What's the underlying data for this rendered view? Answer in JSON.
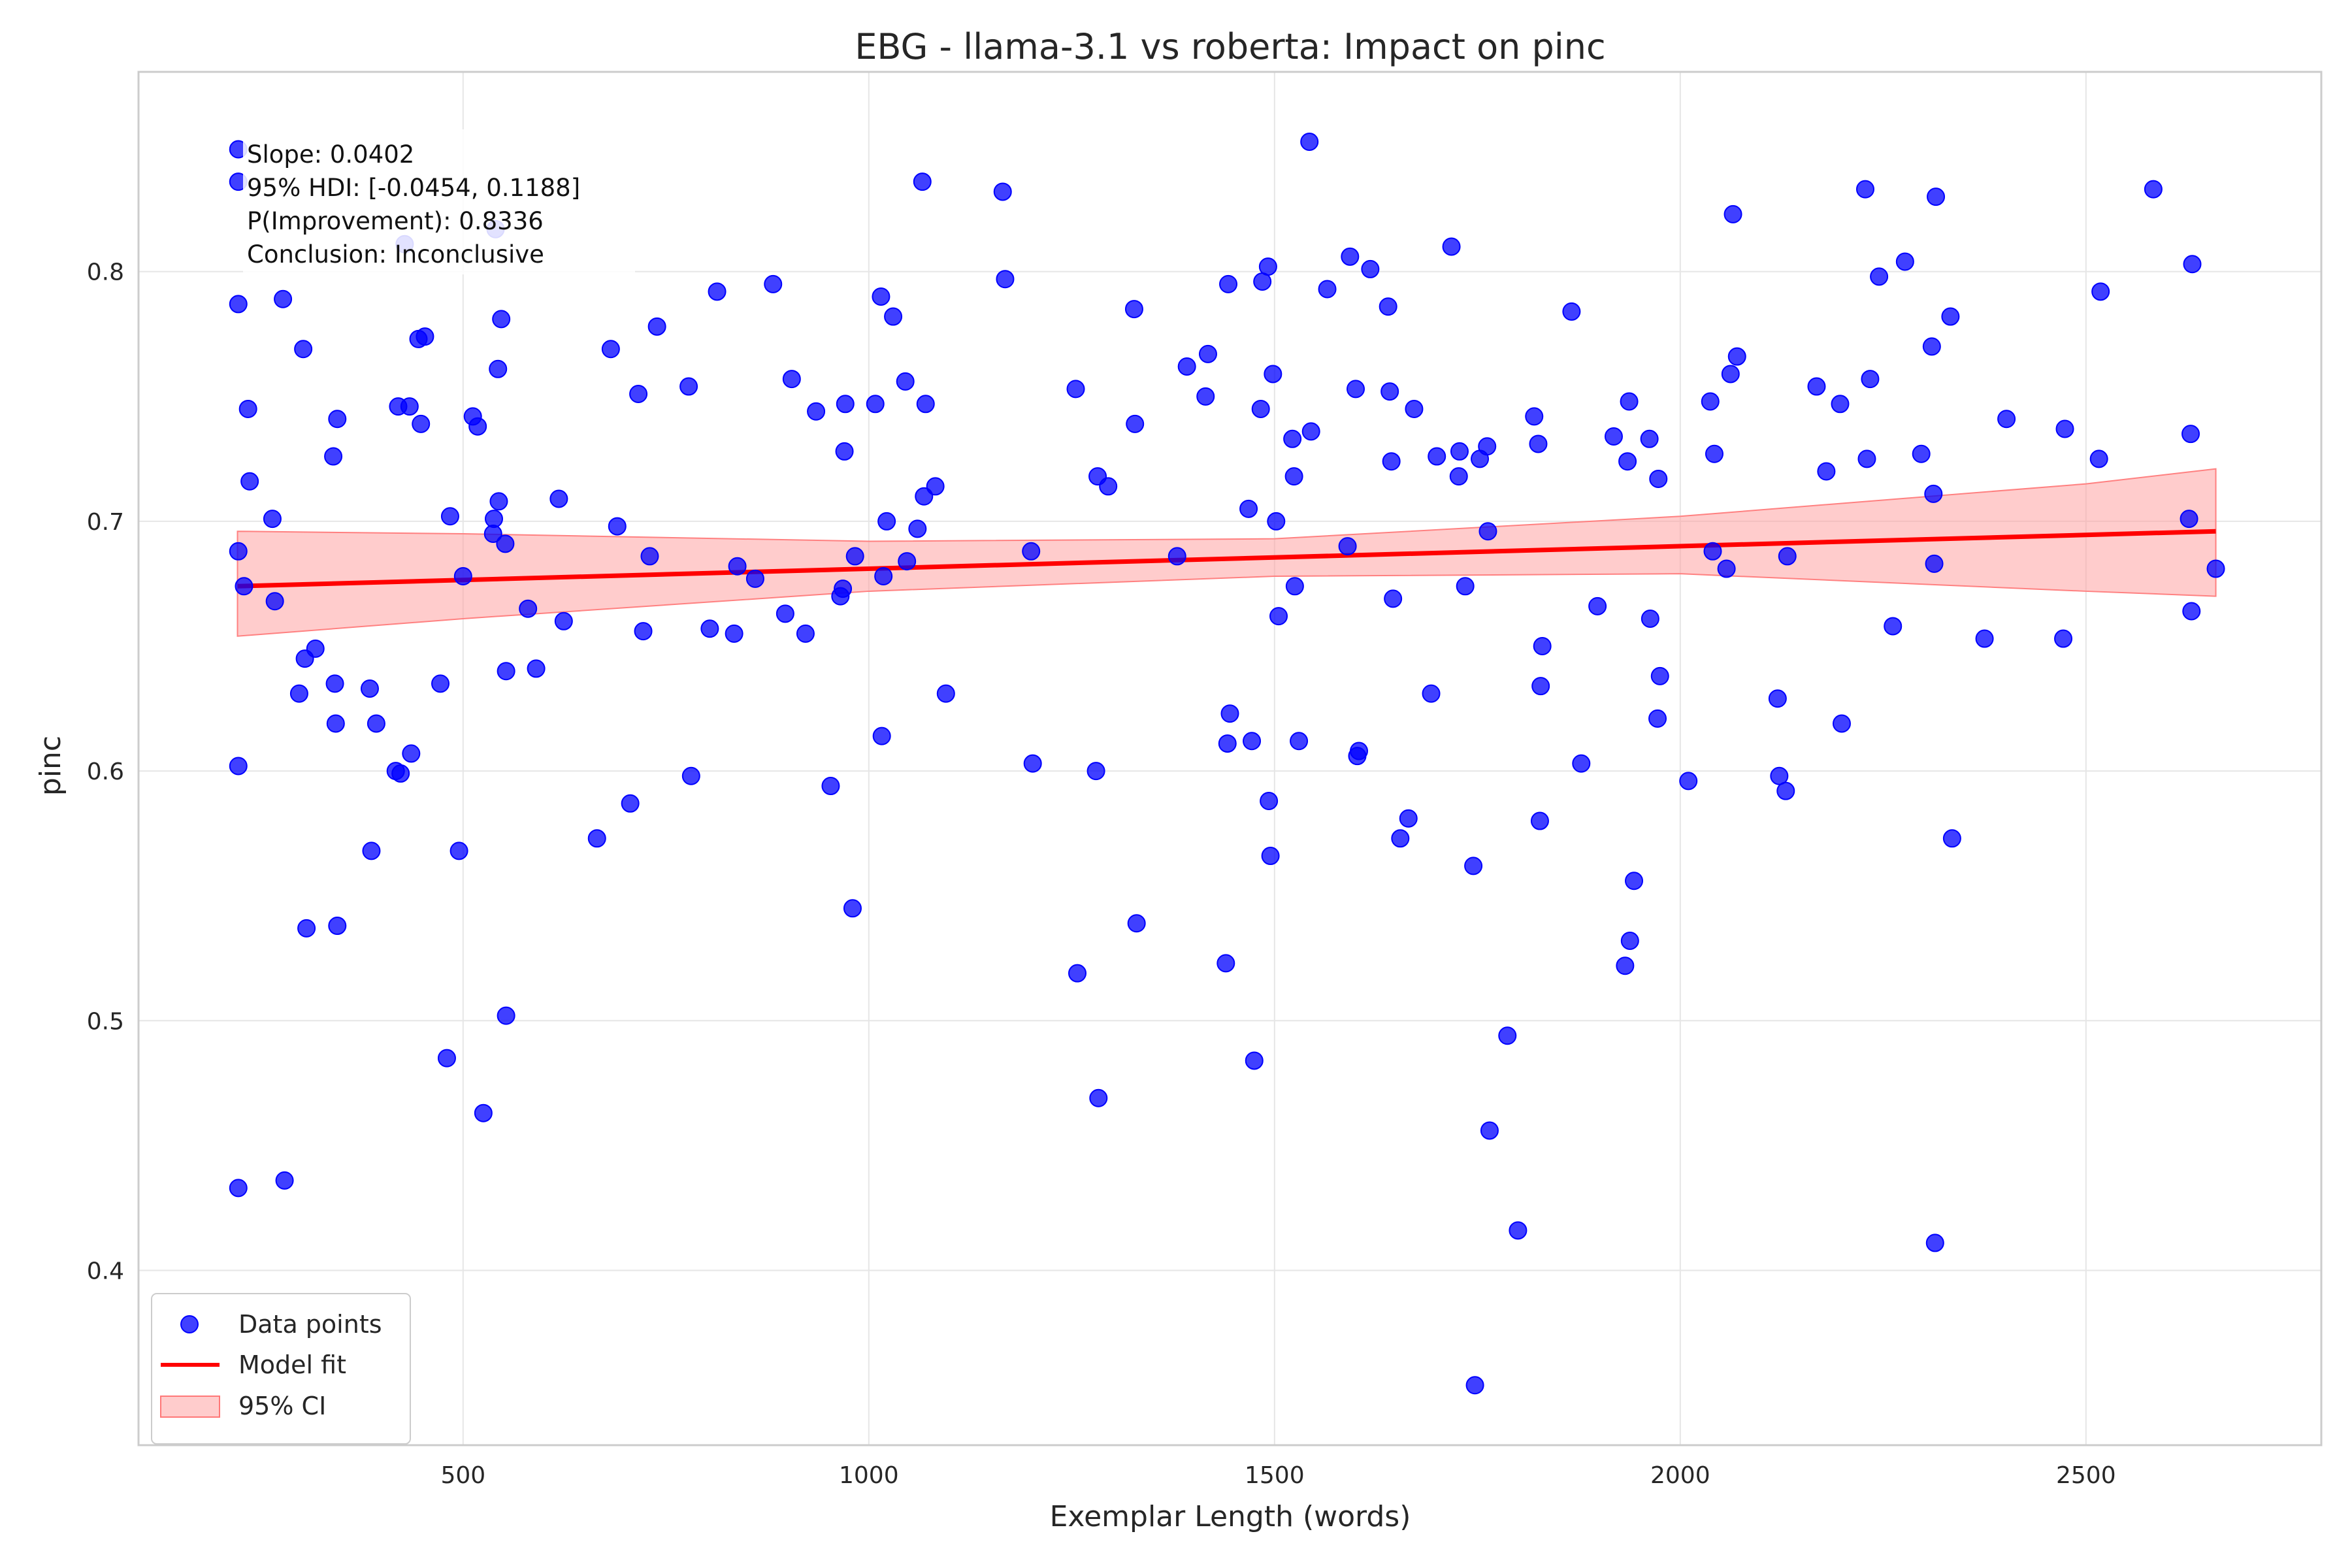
{
  "chart_data": {
    "type": "scatter",
    "title": "EBG - llama-3.1 vs roberta: Impact on pinc",
    "xlabel": "Exemplar Length (words)",
    "ylabel": "pinc",
    "xlim": [
      100,
      2790
    ],
    "ylim": [
      0.33,
      0.88
    ],
    "x_ticks": [
      500,
      1000,
      1500,
      2000,
      2500
    ],
    "y_ticks": [
      0.4,
      0.5,
      0.6,
      0.7,
      0.8
    ],
    "grid": true,
    "legend_position": "bottom-left",
    "colors": {
      "points": "#0000ff",
      "fit_line": "#ff0000",
      "ci_fill": "#ff9999",
      "grid": "#e6e6e6",
      "axis": "#cccccc"
    },
    "annotation": [
      "Slope: 0.0402",
      "95% HDI: [-0.0454, 0.1188]",
      "P(Improvement): 0.8336",
      "Conclusion: Inconclusive"
    ],
    "legend": [
      "Data points",
      "Model fit",
      "95% CI"
    ],
    "model_fit": {
      "x": [
        222,
        2660
      ],
      "y": [
        0.674,
        0.696
      ]
    },
    "ci_band": {
      "x": [
        222,
        500,
        1000,
        1500,
        2000,
        2500,
        2660
      ],
      "upper": [
        0.696,
        0.695,
        0.692,
        0.693,
        0.702,
        0.715,
        0.721
      ],
      "lower": [
        0.654,
        0.661,
        0.672,
        0.678,
        0.679,
        0.672,
        0.67
      ]
    },
    "series": [
      {
        "name": "Data points",
        "points": [
          [
            223,
            0.849
          ],
          [
            223,
            0.836
          ],
          [
            223,
            0.787
          ],
          [
            223,
            0.688
          ],
          [
            223,
            0.602
          ],
          [
            223,
            0.433
          ],
          [
            230,
            0.674
          ],
          [
            235,
            0.745
          ],
          [
            237,
            0.716
          ],
          [
            265,
            0.701
          ],
          [
            268,
            0.668
          ],
          [
            278,
            0.789
          ],
          [
            280,
            0.436
          ],
          [
            298,
            0.631
          ],
          [
            303,
            0.769
          ],
          [
            305,
            0.645
          ],
          [
            307,
            0.537
          ],
          [
            318,
            0.649
          ],
          [
            340,
            0.726
          ],
          [
            342,
            0.635
          ],
          [
            343,
            0.619
          ],
          [
            345,
            0.741
          ],
          [
            345,
            0.538
          ],
          [
            385,
            0.633
          ],
          [
            387,
            0.568
          ],
          [
            393,
            0.619
          ],
          [
            417,
            0.6
          ],
          [
            420,
            0.746
          ],
          [
            423,
            0.599
          ],
          [
            428,
            0.811
          ],
          [
            434,
            0.746
          ],
          [
            436,
            0.607
          ],
          [
            445,
            0.773
          ],
          [
            448,
            0.739
          ],
          [
            453,
            0.774
          ],
          [
            472,
            0.635
          ],
          [
            480,
            0.485
          ],
          [
            484,
            0.702
          ],
          [
            495,
            0.568
          ],
          [
            500,
            0.678
          ],
          [
            512,
            0.742
          ],
          [
            518,
            0.738
          ],
          [
            525,
            0.463
          ],
          [
            537,
            0.695
          ],
          [
            538,
            0.701
          ],
          [
            540,
            0.817
          ],
          [
            543,
            0.761
          ],
          [
            544,
            0.708
          ],
          [
            547,
            0.781
          ],
          [
            552,
            0.691
          ],
          [
            553,
            0.64
          ],
          [
            553,
            0.502
          ],
          [
            580,
            0.665
          ],
          [
            590,
            0.641
          ],
          [
            618,
            0.709
          ],
          [
            624,
            0.66
          ],
          [
            665,
            0.573
          ],
          [
            682,
            0.769
          ],
          [
            690,
            0.698
          ],
          [
            706,
            0.587
          ],
          [
            716,
            0.751
          ],
          [
            722,
            0.656
          ],
          [
            730,
            0.686
          ],
          [
            739,
            0.778
          ],
          [
            778,
            0.754
          ],
          [
            781,
            0.598
          ],
          [
            804,
            0.657
          ],
          [
            813,
            0.792
          ],
          [
            834,
            0.655
          ],
          [
            838,
            0.682
          ],
          [
            860,
            0.677
          ],
          [
            882,
            0.795
          ],
          [
            897,
            0.663
          ],
          [
            905,
            0.757
          ],
          [
            922,
            0.655
          ],
          [
            935,
            0.744
          ],
          [
            953,
            0.594
          ],
          [
            965,
            0.67
          ],
          [
            968,
            0.673
          ],
          [
            970,
            0.728
          ],
          [
            971,
            0.747
          ],
          [
            980,
            0.545
          ],
          [
            983,
            0.686
          ],
          [
            1008,
            0.747
          ],
          [
            1015,
            0.79
          ],
          [
            1016,
            0.614
          ],
          [
            1018,
            0.678
          ],
          [
            1022,
            0.7
          ],
          [
            1030,
            0.782
          ],
          [
            1045,
            0.756
          ],
          [
            1047,
            0.684
          ],
          [
            1060,
            0.697
          ],
          [
            1066,
            0.836
          ],
          [
            1068,
            0.71
          ],
          [
            1070,
            0.747
          ],
          [
            1082,
            0.714
          ],
          [
            1095,
            0.631
          ],
          [
            1165,
            0.832
          ],
          [
            1168,
            0.797
          ],
          [
            1200,
            0.688
          ],
          [
            1202,
            0.603
          ],
          [
            1255,
            0.753
          ],
          [
            1257,
            0.519
          ],
          [
            1280,
            0.6
          ],
          [
            1282,
            0.718
          ],
          [
            1283,
            0.469
          ],
          [
            1295,
            0.714
          ],
          [
            1327,
            0.785
          ],
          [
            1328,
            0.739
          ],
          [
            1330,
            0.539
          ],
          [
            1380,
            0.686
          ],
          [
            1392,
            0.762
          ],
          [
            1415,
            0.75
          ],
          [
            1418,
            0.767
          ],
          [
            1440,
            0.523
          ],
          [
            1442,
            0.611
          ],
          [
            1443,
            0.795
          ],
          [
            1445,
            0.623
          ],
          [
            1468,
            0.705
          ],
          [
            1472,
            0.612
          ],
          [
            1475,
            0.484
          ],
          [
            1483,
            0.745
          ],
          [
            1485,
            0.796
          ],
          [
            1492,
            0.802
          ],
          [
            1493,
            0.588
          ],
          [
            1495,
            0.566
          ],
          [
            1498,
            0.759
          ],
          [
            1502,
            0.7
          ],
          [
            1505,
            0.662
          ],
          [
            1522,
            0.733
          ],
          [
            1524,
            0.718
          ],
          [
            1525,
            0.674
          ],
          [
            1530,
            0.612
          ],
          [
            1543,
            0.852
          ],
          [
            1545,
            0.736
          ],
          [
            1565,
            0.793
          ],
          [
            1590,
            0.69
          ],
          [
            1593,
            0.806
          ],
          [
            1600,
            0.753
          ],
          [
            1602,
            0.606
          ],
          [
            1604,
            0.608
          ],
          [
            1618,
            0.801
          ],
          [
            1640,
            0.786
          ],
          [
            1642,
            0.752
          ],
          [
            1644,
            0.724
          ],
          [
            1646,
            0.669
          ],
          [
            1655,
            0.573
          ],
          [
            1665,
            0.581
          ],
          [
            1672,
            0.745
          ],
          [
            1693,
            0.631
          ],
          [
            1700,
            0.726
          ],
          [
            1718,
            0.81
          ],
          [
            1727,
            0.718
          ],
          [
            1728,
            0.728
          ],
          [
            1735,
            0.674
          ],
          [
            1745,
            0.562
          ],
          [
            1747,
            0.354
          ],
          [
            1753,
            0.725
          ],
          [
            1762,
            0.73
          ],
          [
            1763,
            0.696
          ],
          [
            1765,
            0.456
          ],
          [
            1787,
            0.494
          ],
          [
            1800,
            0.416
          ],
          [
            1820,
            0.742
          ],
          [
            1825,
            0.731
          ],
          [
            1827,
            0.58
          ],
          [
            1828,
            0.634
          ],
          [
            1830,
            0.65
          ],
          [
            1866,
            0.784
          ],
          [
            1878,
            0.603
          ],
          [
            1898,
            0.666
          ],
          [
            1918,
            0.734
          ],
          [
            1932,
            0.522
          ],
          [
            1935,
            0.724
          ],
          [
            1937,
            0.748
          ],
          [
            1938,
            0.532
          ],
          [
            1943,
            0.556
          ],
          [
            1962,
            0.733
          ],
          [
            1963,
            0.661
          ],
          [
            1972,
            0.621
          ],
          [
            1973,
            0.717
          ],
          [
            1975,
            0.638
          ],
          [
            2010,
            0.596
          ],
          [
            2037,
            0.748
          ],
          [
            2040,
            0.688
          ],
          [
            2042,
            0.727
          ],
          [
            2057,
            0.681
          ],
          [
            2062,
            0.759
          ],
          [
            2065,
            0.823
          ],
          [
            2070,
            0.766
          ],
          [
            2120,
            0.629
          ],
          [
            2122,
            0.598
          ],
          [
            2130,
            0.592
          ],
          [
            2132,
            0.686
          ],
          [
            2168,
            0.754
          ],
          [
            2180,
            0.72
          ],
          [
            2197,
            0.747
          ],
          [
            2199,
            0.619
          ],
          [
            2228,
            0.833
          ],
          [
            2230,
            0.725
          ],
          [
            2234,
            0.757
          ],
          [
            2245,
            0.798
          ],
          [
            2262,
            0.658
          ],
          [
            2277,
            0.804
          ],
          [
            2297,
            0.727
          ],
          [
            2310,
            0.77
          ],
          [
            2312,
            0.711
          ],
          [
            2313,
            0.683
          ],
          [
            2314,
            0.411
          ],
          [
            2315,
            0.83
          ],
          [
            2333,
            0.782
          ],
          [
            2335,
            0.573
          ],
          [
            2375,
            0.653
          ],
          [
            2402,
            0.741
          ],
          [
            2472,
            0.653
          ],
          [
            2474,
            0.737
          ],
          [
            2516,
            0.725
          ],
          [
            2518,
            0.792
          ],
          [
            2583,
            0.833
          ],
          [
            2627,
            0.701
          ],
          [
            2629,
            0.735
          ],
          [
            2630,
            0.664
          ],
          [
            2631,
            0.803
          ],
          [
            2660,
            0.681
          ]
        ]
      }
    ]
  }
}
